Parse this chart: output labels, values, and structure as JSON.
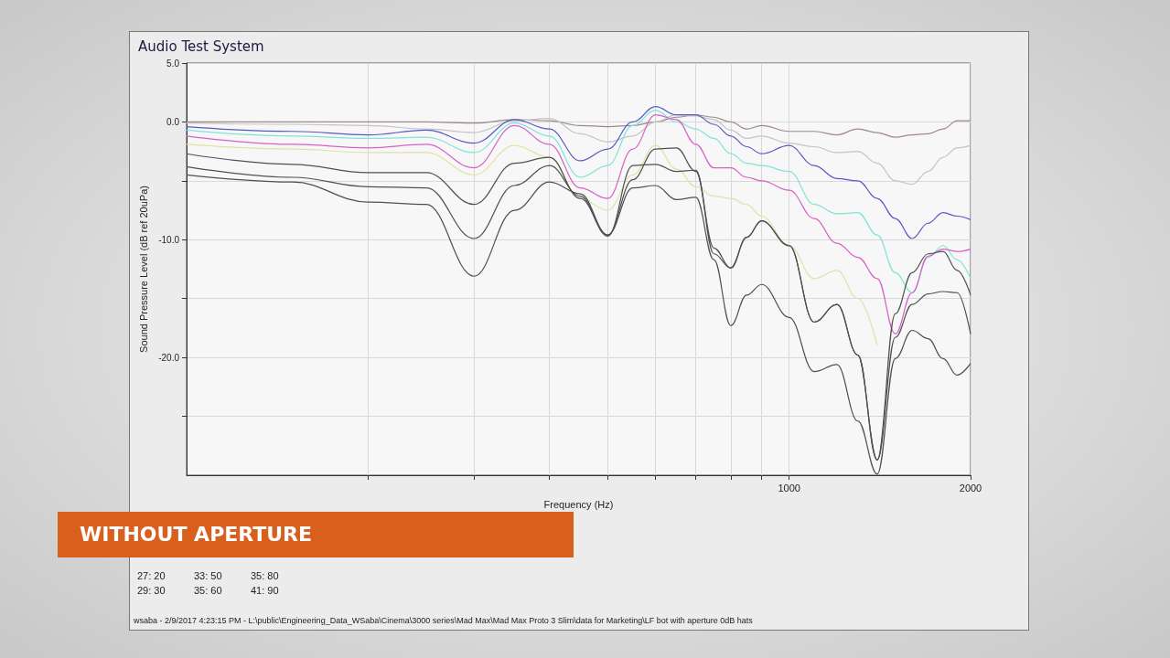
{
  "chart_data": {
    "type": "line",
    "title": "Audio Test System",
    "xlabel": "Frequency (Hz)",
    "ylabel": "Sound Pressure Level (dB ref 20uPa)",
    "x": [
      100,
      150,
      200,
      250,
      300,
      350,
      400,
      450,
      500,
      550,
      600,
      650,
      700,
      750,
      800,
      850,
      900,
      1000,
      1100,
      1200,
      1300,
      1400,
      1500,
      1600,
      1700,
      1800,
      1900,
      2000
    ],
    "series": [
      {
        "color": "#a08888",
        "values": [
          0,
          0,
          0,
          0,
          -0.1,
          0.2,
          0.1,
          -0.3,
          -0.4,
          -0.3,
          0,
          0.4,
          0.6,
          0.4,
          0,
          -0.6,
          -0.3,
          -0.8,
          -0.8,
          -1.1,
          -0.6,
          -0.9,
          -1.3,
          -1.1,
          -1.0,
          -0.6,
          0.1,
          0.1
        ]
      },
      {
        "color": "#c4c4c4",
        "values": [
          -0.1,
          -0.2,
          -0.3,
          -0.6,
          -0.9,
          0.1,
          0.3,
          -1.0,
          -1.7,
          -1.2,
          0,
          0.6,
          0.5,
          0.2,
          -0.7,
          -1.4,
          -1.2,
          -1.8,
          -2.1,
          -2.6,
          -2.5,
          -3.5,
          -5.0,
          -5.3,
          -4.2,
          -3.0,
          -2.2,
          -2.0
        ]
      },
      {
        "color": "#5858c8",
        "values": [
          -0.4,
          -0.8,
          -1.1,
          -0.7,
          -1.8,
          0.2,
          -0.6,
          -3.3,
          -2.3,
          0,
          1.3,
          0.6,
          0.6,
          -0.2,
          -1.2,
          -2.1,
          -2.7,
          -2.0,
          -3.7,
          -4.8,
          -5.0,
          -6.5,
          -8.2,
          -9.9,
          -8.6,
          -7.7,
          -8.0,
          -8.3
        ]
      },
      {
        "color": "#80e4d8",
        "values": [
          -0.7,
          -1.2,
          -1.4,
          -1.3,
          -2.6,
          -0.1,
          -1.2,
          -4.7,
          -3.7,
          -0.3,
          1.0,
          0,
          -0.6,
          -1.4,
          -2.7,
          -3.5,
          -3.7,
          -4.2,
          -7.0,
          -7.8,
          -7.7,
          -9.6,
          -12.8,
          -14.5,
          -11.5,
          -10.5,
          -11.7,
          -13.3
        ]
      },
      {
        "color": "#d860c8",
        "values": [
          -1.2,
          -1.9,
          -2.2,
          -1.9,
          -3.9,
          -0.3,
          -1.9,
          -5.6,
          -6.5,
          -2.3,
          0.6,
          0.2,
          -1.9,
          -3.9,
          -3.9,
          -4.7,
          -5.0,
          -5.8,
          -8.2,
          -10.3,
          -11.5,
          -13.3,
          -18.0,
          -14.5,
          -11.4,
          -10.8,
          -11.0,
          -10.8
        ]
      },
      {
        "color": "#e4e0a8",
        "values": [
          -1.9,
          -2.3,
          -2.6,
          -2.6,
          -4.5,
          -2.0,
          -3.0,
          -6.5,
          -7.5,
          -4.5,
          -2.0,
          -4.0,
          -5.5,
          -6.3,
          -6.5,
          -7.0,
          -8.0,
          -10.5,
          -13.3,
          -12.6,
          -15.0,
          -19.0,
          null,
          null,
          null,
          null,
          null,
          null
        ]
      },
      {
        "color": "#505050",
        "values": [
          -2.7,
          -3.6,
          -4.3,
          -4.3,
          -7.0,
          -3.5,
          -3.0,
          -6.5,
          -9.6,
          -4.9,
          -2.3,
          -2.2,
          -4.2,
          -10.7,
          -12.4,
          -9.8,
          -8.4,
          -10.5,
          -17.0,
          -15.5,
          -19.8,
          -28.7,
          -16.3,
          -12.8,
          -11.2,
          -11.0,
          -12.6,
          -14.7
        ]
      },
      {
        "color": "#505050",
        "values": [
          -3.8,
          -4.7,
          -5.5,
          -5.6,
          -9.9,
          -5.4,
          -3.7,
          -6.3,
          -9.7,
          -3.7,
          -3.6,
          -4.2,
          -4.1,
          -11.2,
          -12.4,
          -9.8,
          -8.4,
          -10.5,
          -17.0,
          -15.5,
          -19.8,
          -28.7,
          -18.3,
          -15.5,
          -14.6,
          -14.4,
          -14.5,
          -18.0
        ]
      },
      {
        "color": "#505050",
        "values": [
          -4.5,
          -5.1,
          -6.8,
          -7.0,
          -13.1,
          -7.5,
          -5.1,
          -6.1,
          -9.6,
          -5.6,
          -5.4,
          -6.6,
          -6.4,
          -11.7,
          -17.3,
          -14.7,
          -13.8,
          -16.6,
          -21.2,
          -20.6,
          -25.4,
          -29.9,
          -20.1,
          -17.7,
          -18.4,
          -20.1,
          -21.5,
          -20.5
        ]
      }
    ],
    "log": "x",
    "xlim": [
      100,
      2000
    ],
    "xticks": [
      {
        "value": 200,
        "label": null
      },
      {
        "value": 300,
        "label": null
      },
      {
        "value": 400,
        "label": null
      },
      {
        "value": 500,
        "label": null
      },
      {
        "value": 600,
        "label": null
      },
      {
        "value": 700,
        "label": null
      },
      {
        "value": 800,
        "label": null
      },
      {
        "value": 900,
        "label": null
      },
      1000,
      2000
    ],
    "ylim": [
      -30,
      5
    ],
    "yticks": [
      {
        "value": -25,
        "label": null
      },
      {
        "value": -20,
        "label": "-20.0"
      },
      {
        "value": -15,
        "label": null
      },
      {
        "value": -10,
        "label": "-10.0"
      },
      {
        "value": -5,
        "label": null
      },
      {
        "value": 0,
        "label": "0.0"
      },
      {
        "value": 5,
        "label": "5.0"
      }
    ],
    "grid": true,
    "marker": "none",
    "annotations": [
      "WITHOUT APERTURE",
      "27: 20",
      "33: 50",
      "35: 80",
      "29: 30",
      "35: 60",
      "41: 90",
      "wsaba - 2/9/2017 4:23:15 PM - L:\\public\\Engineering_Data_WSaba\\Cinema\\3000 series\\Mad Max\\Mad Max Proto 3 Slim\\data for Marketing\\LF bot with aperture 0dB hats"
    ]
  }
}
